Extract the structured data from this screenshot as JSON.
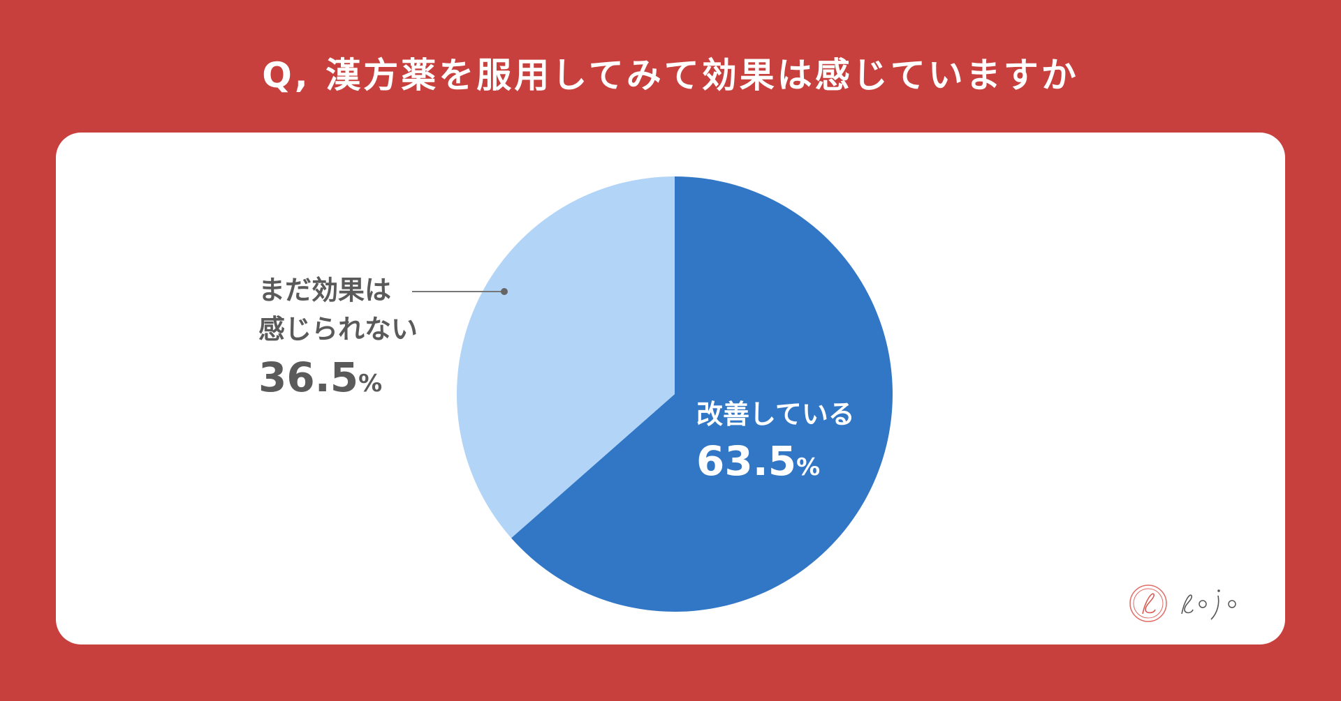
{
  "title": "Q, 漢方薬を服用してみて効果は感じていますか",
  "colors": {
    "background": "#c8403e",
    "card": "#ffffff",
    "improving": "#3277c6",
    "not_yet": "#b2d4f7",
    "label_gray": "#5a5a5a"
  },
  "chart_data": {
    "type": "pie",
    "title": "Q, 漢方薬を服用してみて効果は感じていますか",
    "slices": [
      {
        "label": "改善している",
        "value": 63.5,
        "display": "63.5",
        "unit": "%",
        "color": "#3277c6"
      },
      {
        "label_lines": [
          "まだ効果は",
          "感じられない"
        ],
        "value": 36.5,
        "display": "36.5",
        "unit": "%",
        "color": "#b2d4f7"
      }
    ],
    "start": "12 o'clock, clockwise",
    "legend": "none"
  },
  "logo": {
    "icon": "yojo-logo-icon"
  }
}
